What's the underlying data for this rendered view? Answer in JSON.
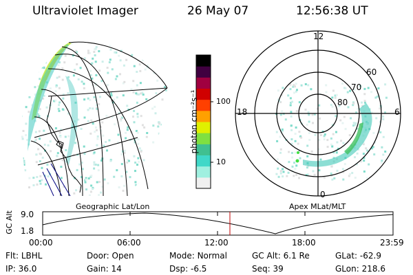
{
  "header": {
    "title": "Ultraviolet Imager",
    "date": "26 May 07",
    "time": "12:56:38 UT"
  },
  "colorbar": {
    "unit_label": "photon cm⁻²s⁻¹",
    "ticks": [
      "100",
      "10"
    ],
    "colors": [
      "#f0f0f0",
      "#a0f0e0",
      "#40d8c8",
      "#40c090",
      "#80e040",
      "#e0f000",
      "#ffa000",
      "#ff4000",
      "#d00000",
      "#a00040",
      "#400040",
      "#000000"
    ]
  },
  "polar": {
    "mlt_labels": {
      "top": "12",
      "left": "18",
      "right": "6",
      "bottom": "0"
    },
    "lat_labels": [
      "60",
      "70",
      "80"
    ]
  },
  "panel_labels": {
    "left": "Geographic Lat/Lon",
    "right": "Apex MLat/MLT"
  },
  "altitude_plot": {
    "axis_label": "GC Alt",
    "y_top": "9.0",
    "y_bottom": "1.8",
    "x_ticks": [
      "00:00",
      "06:00",
      "12:00",
      "18:00",
      "23:59"
    ],
    "current_time_marker": "12:56",
    "line_color": "#000000",
    "marker_color": "#c00000"
  },
  "footer": {
    "row1": [
      {
        "key": "Flt:",
        "val": "LBHL"
      },
      {
        "key": "Door:",
        "val": "Open"
      },
      {
        "key": "Mode:",
        "val": "Normal"
      },
      {
        "key": "GC Alt:",
        "val": "6.1 Re"
      },
      {
        "key": "GLat:",
        "val": "-62.9"
      }
    ],
    "row2": [
      {
        "key": "IP:",
        "val": "36.0"
      },
      {
        "key": "Gain:",
        "val": "14"
      },
      {
        "key": "Dsp:",
        "val": "-6.5"
      },
      {
        "key": "Seq:",
        "val": "39"
      },
      {
        "key": "GLon:",
        "val": "218.6"
      }
    ]
  }
}
